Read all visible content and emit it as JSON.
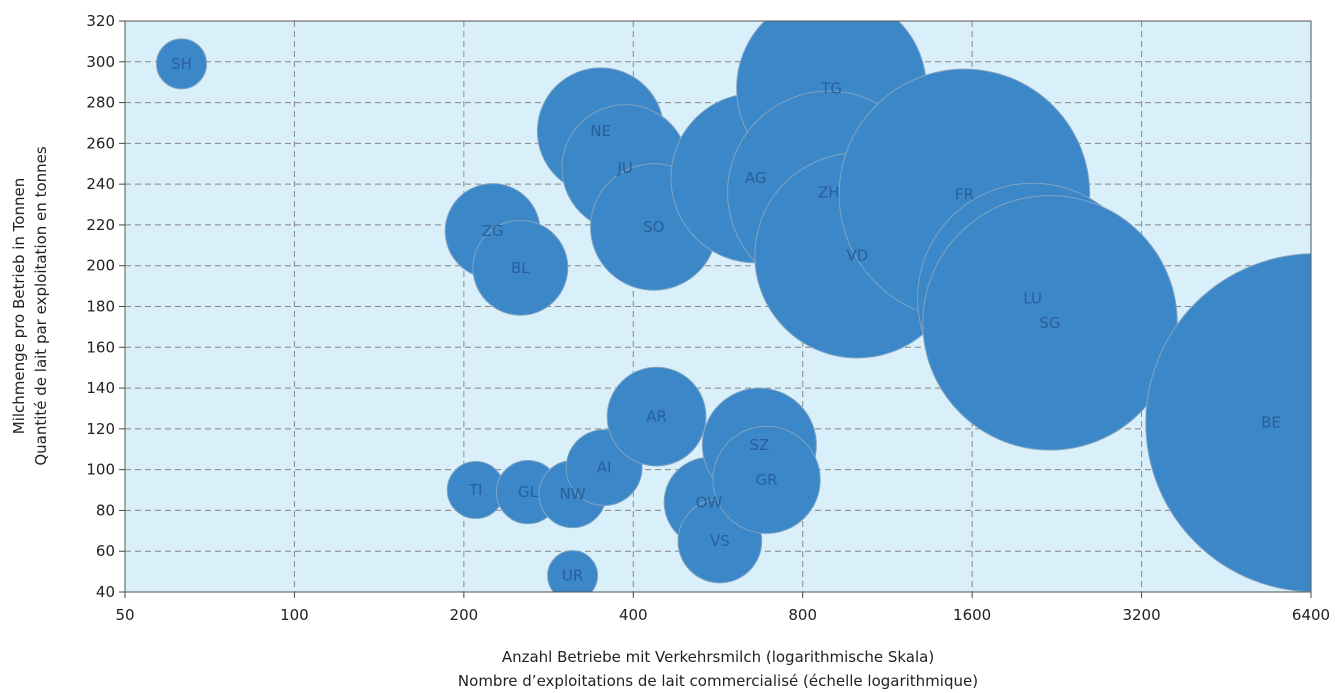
{
  "chart_data": {
    "type": "scatter",
    "variant": "bubble",
    "xlabel_lines": [
      "Anzahl Betriebe mit Verkehrsmilch (logarithmische Skala)",
      "Nombre d’exploitations de lait commercialisé (échelle logarithmique)"
    ],
    "ylabel_lines": [
      "Milchmenge pro Betrieb in Tonnen",
      "Quantité de lait par exploitation en tonnes"
    ],
    "x_scale": "log2",
    "xlim": [
      50,
      6400
    ],
    "ylim": [
      40,
      320
    ],
    "x_ticks": [
      50,
      100,
      200,
      400,
      800,
      1600,
      3200,
      6400
    ],
    "y_ticks": [
      40,
      60,
      80,
      100,
      120,
      140,
      160,
      180,
      200,
      220,
      240,
      260,
      280,
      300,
      320
    ],
    "grid": true,
    "colors": {
      "plot_background": "#d9eff9",
      "bubble_fill": "#3b87c8",
      "bubble_stroke": "#7fa3c2",
      "label": "#2a5f9a",
      "grid": "#888888"
    },
    "points": [
      {
        "label": "SH",
        "x": 63,
        "y": 299,
        "size": 1
      },
      {
        "label": "UR",
        "x": 312,
        "y": 48,
        "size": 1
      },
      {
        "label": "TI",
        "x": 210,
        "y": 90,
        "size": 1.3
      },
      {
        "label": "GL",
        "x": 260,
        "y": 89,
        "size": 1.6
      },
      {
        "label": "NW",
        "x": 312,
        "y": 88,
        "size": 1.8
      },
      {
        "label": "AI",
        "x": 355,
        "y": 101,
        "size": 2.3
      },
      {
        "label": "AR",
        "x": 440,
        "y": 126,
        "size": 3.9
      },
      {
        "label": "OW",
        "x": 545,
        "y": 84,
        "size": 3.2
      },
      {
        "label": "VS",
        "x": 570,
        "y": 65,
        "size": 2.8
      },
      {
        "label": "SZ",
        "x": 670,
        "y": 112,
        "size": 5.2
      },
      {
        "label": "GR",
        "x": 690,
        "y": 95,
        "size": 4.6
      },
      {
        "label": "ZG",
        "x": 225,
        "y": 217,
        "size": 3.6
      },
      {
        "label": "BL",
        "x": 252,
        "y": 199,
        "size": 3.6
      },
      {
        "label": "NE",
        "x": 350,
        "y": 266,
        "size": 6.4
      },
      {
        "label": "JU",
        "x": 387,
        "y": 248,
        "size": 6.4
      },
      {
        "label": "SO",
        "x": 435,
        "y": 219,
        "size": 6.4
      },
      {
        "label": "AG",
        "x": 660,
        "y": 243,
        "size": 11.5
      },
      {
        "label": "TG",
        "x": 900,
        "y": 287,
        "size": 14.4
      },
      {
        "label": "ZH",
        "x": 890,
        "y": 236,
        "size": 16.4
      },
      {
        "label": "VD",
        "x": 1000,
        "y": 205,
        "size": 16.8
      },
      {
        "label": "FR",
        "x": 1550,
        "y": 235,
        "size": 25.1
      },
      {
        "label": "LU",
        "x": 2050,
        "y": 184,
        "size": 21.2
      },
      {
        "label": "SG",
        "x": 2200,
        "y": 172,
        "size": 25.9
      },
      {
        "label": "BE",
        "x": 6500,
        "y": 123,
        "size": 45.7
      }
    ]
  }
}
